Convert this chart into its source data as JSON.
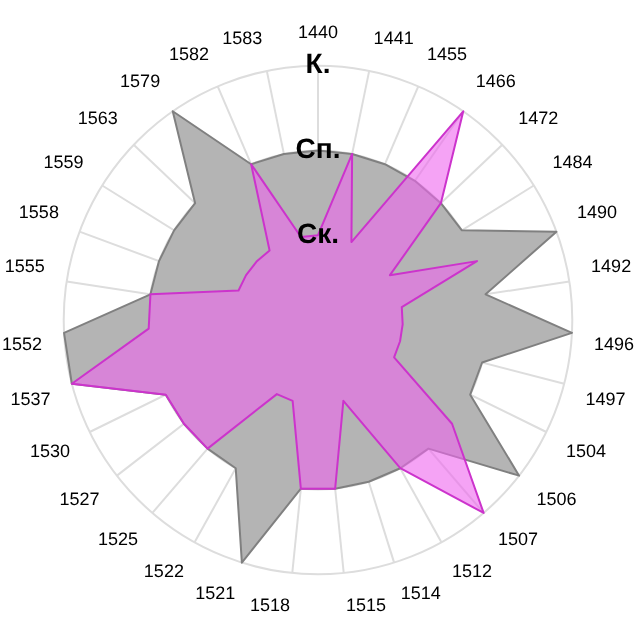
{
  "chart_data": {
    "type": "radar",
    "categories": [
      "1440",
      "1441",
      "1455",
      "1466",
      "1472",
      "1484",
      "1490",
      "1492",
      "1496",
      "1497",
      "1504",
      "1506",
      "1507",
      "1512",
      "1514",
      "1515",
      "1518",
      "1521",
      "1522",
      "1525",
      "1527",
      "1530",
      "1537",
      "1552",
      "1555",
      "1558",
      "1559",
      "1563",
      "1579",
      "1582",
      "1583"
    ],
    "series": [
      {
        "color": "#808080",
        "values": [
          2,
          2,
          2,
          2,
          2,
          2,
          3,
          2,
          3,
          2,
          2,
          3,
          2,
          2,
          2,
          2,
          2,
          3,
          2,
          2,
          2,
          2,
          3,
          3,
          2,
          2,
          2,
          2,
          3,
          2,
          2
        ]
      },
      {
        "color": "#cc33cc",
        "values": [
          1,
          2,
          1,
          3,
          2,
          1,
          2,
          1,
          1,
          1,
          1,
          2,
          3,
          2,
          1,
          2,
          2,
          1,
          1,
          2,
          2,
          2,
          3,
          2,
          2,
          1,
          1,
          1,
          1,
          2,
          1
        ]
      }
    ],
    "ylim": [
      0,
      3
    ],
    "yticks": [
      {
        "value": 1,
        "label": "Ск."
      },
      {
        "value": 2,
        "label": "Сп."
      },
      {
        "value": 3,
        "label": "К."
      }
    ],
    "grid": true,
    "legend": false
  }
}
